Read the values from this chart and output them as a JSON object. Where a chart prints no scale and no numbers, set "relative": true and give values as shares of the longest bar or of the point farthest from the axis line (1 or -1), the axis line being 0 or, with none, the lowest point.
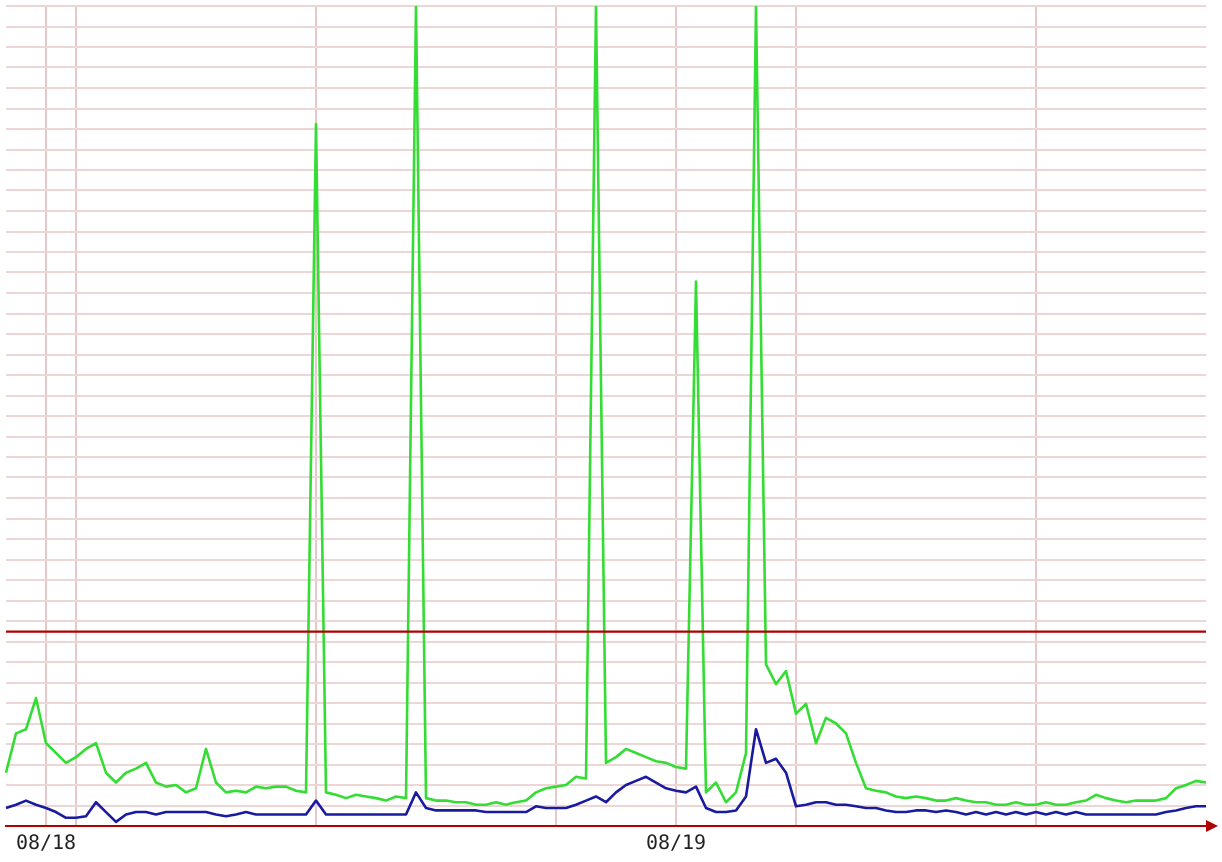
{
  "chart_data": {
    "type": "line",
    "relative": true,
    "grid": true,
    "legend": false,
    "marker": "none",
    "line_style": "solid",
    "categories": [
      null,
      null,
      null,
      null,
      "08/18",
      null,
      null,
      null,
      null,
      null,
      null,
      null,
      null,
      null,
      null,
      null,
      null,
      null,
      null,
      null,
      null,
      null,
      null,
      null,
      null,
      null,
      null,
      null,
      null,
      null,
      null,
      null,
      null,
      null,
      null,
      null,
      null,
      null,
      null,
      null,
      null,
      null,
      null,
      null,
      null,
      null,
      null,
      null,
      null,
      null,
      null,
      null,
      null,
      null,
      null,
      null,
      null,
      null,
      null,
      null,
      null,
      null,
      null,
      null,
      null,
      null,
      null,
      "08/19",
      null,
      null,
      null,
      null,
      null,
      null,
      null,
      null,
      null,
      null,
      null,
      null,
      null,
      null,
      null,
      null,
      null,
      null,
      null,
      null,
      null,
      null,
      null,
      null,
      null,
      null,
      null,
      null,
      null,
      null,
      null,
      null,
      null,
      null,
      null,
      null,
      null,
      null,
      null,
      null,
      null,
      null,
      null,
      null,
      null,
      null,
      null,
      null,
      null,
      null,
      null,
      null,
      null
    ],
    "series": [
      {
        "color": "#33dd33",
        "values": [
          0.065,
          0.113,
          0.118,
          0.156,
          0.101,
          0.089,
          0.077,
          0.084,
          0.094,
          0.101,
          0.065,
          0.053,
          0.065,
          0.07,
          0.077,
          0.053,
          0.048,
          0.05,
          0.041,
          0.046,
          0.094,
          0.053,
          0.041,
          0.043,
          0.041,
          0.048,
          0.046,
          0.048,
          0.048,
          0.043,
          0.041,
          0.856,
          0.041,
          0.038,
          0.034,
          0.038,
          0.036,
          0.034,
          0.031,
          0.036,
          0.034,
          1,
          0.034,
          0.031,
          0.031,
          0.029,
          0.029,
          0.026,
          0.026,
          0.029,
          0.026,
          0.029,
          0.031,
          0.041,
          0.046,
          0.048,
          0.05,
          0.06,
          0.058,
          1,
          0.077,
          0.084,
          0.094,
          0.089,
          0.084,
          0.079,
          0.077,
          0.072,
          0.07,
          0.664,
          0.041,
          0.053,
          0.029,
          0.041,
          0.089,
          1,
          0.197,
          0.173,
          0.189,
          0.137,
          0.149,
          0.101,
          0.132,
          0.125,
          0.113,
          0.077,
          0.046,
          0.043,
          0.041,
          0.036,
          0.034,
          0.036,
          0.034,
          0.031,
          0.031,
          0.034,
          0.031,
          0.029,
          0.029,
          0.026,
          0.026,
          0.029,
          0.026,
          0.026,
          0.029,
          0.026,
          0.026,
          0.029,
          0.031,
          0.038,
          0.034,
          0.031,
          0.029,
          0.031,
          0.031,
          0.031,
          0.034,
          0.046,
          0.05,
          0.055,
          0.053
        ]
      },
      {
        "color": "#1a1aa0",
        "values": [
          0.022,
          0.026,
          0.031,
          0.026,
          0.022,
          0.017,
          0.01,
          0.01,
          0.012,
          0.029,
          0.017,
          0.005,
          0.014,
          0.017,
          0.017,
          0.014,
          0.017,
          0.017,
          0.017,
          0.017,
          0.017,
          0.014,
          0.012,
          0.014,
          0.017,
          0.014,
          0.014,
          0.014,
          0.014,
          0.014,
          0.014,
          0.031,
          0.014,
          0.014,
          0.014,
          0.014,
          0.014,
          0.014,
          0.014,
          0.014,
          0.014,
          0.041,
          0.022,
          0.019,
          0.019,
          0.019,
          0.019,
          0.019,
          0.017,
          0.017,
          0.017,
          0.017,
          0.017,
          0.024,
          0.022,
          0.022,
          0.022,
          0.026,
          0.031,
          0.036,
          0.029,
          0.041,
          0.05,
          0.055,
          0.06,
          0.053,
          0.046,
          0.043,
          0.041,
          0.048,
          0.022,
          0.017,
          0.017,
          0.019,
          0.036,
          0.118,
          0.077,
          0.082,
          0.065,
          0.024,
          0.026,
          0.029,
          0.029,
          0.026,
          0.026,
          0.024,
          0.022,
          0.022,
          0.019,
          0.017,
          0.017,
          0.019,
          0.019,
          0.017,
          0.019,
          0.017,
          0.014,
          0.017,
          0.014,
          0.017,
          0.014,
          0.017,
          0.014,
          0.017,
          0.014,
          0.017,
          0.014,
          0.017,
          0.014,
          0.014,
          0.014,
          0.014,
          0.014,
          0.014,
          0.014,
          0.014,
          0.017,
          0.019,
          0.022,
          0.024,
          0.024
        ]
      }
    ],
    "ref_lines": [
      {
        "axis": "y",
        "value": 0.237,
        "color": "#b00000"
      }
    ]
  }
}
